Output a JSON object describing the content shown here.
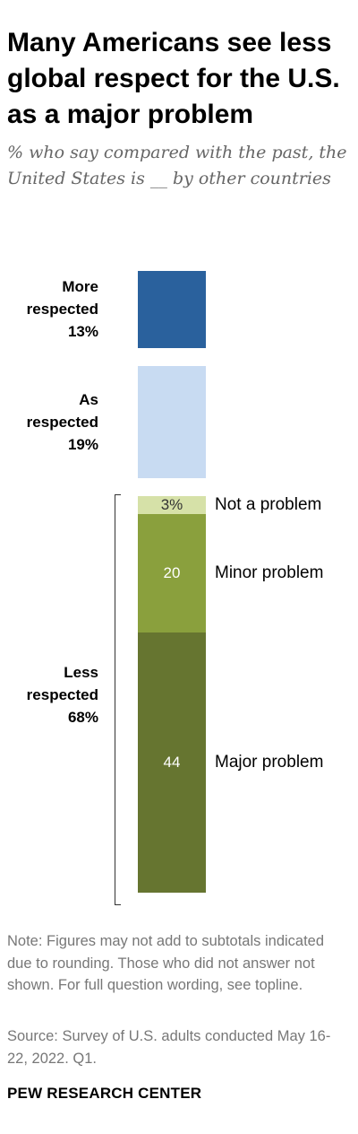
{
  "header": {
    "title": "Many Americans see less global respect for the U.S. as a major problem",
    "subtitle": "% who say compared with the past, the United States is __ by other countries"
  },
  "chart_data": {
    "type": "bar",
    "categories": [
      "More respected",
      "As respected",
      "Less respected"
    ],
    "values": [
      13,
      19,
      68
    ],
    "value_labels": [
      "13%",
      "19%",
      "68%"
    ],
    "colors": [
      "#2a619d",
      "#c8dbf2",
      null
    ],
    "breakdown": {
      "category": "Less respected",
      "segments": [
        {
          "name": "Not a problem",
          "value": 3,
          "value_label": "3%",
          "color": "#d6e1a8",
          "text_color": "#333333"
        },
        {
          "name": "Minor problem",
          "value": 20,
          "value_label": "20",
          "color": "#8aa03d",
          "text_color": "#ffffff"
        },
        {
          "name": "Major problem",
          "value": 44,
          "value_label": "44",
          "color": "#667530",
          "text_color": "#ffffff"
        }
      ]
    }
  },
  "footer": {
    "note": "Note: Figures may not add to subtotals indicated due to rounding. Those who did not answer not shown. For full question wording, see topline.",
    "source": "Source: Survey of U.S. adults conducted May 16-22, 2022. Q1.",
    "brand": "PEW RESEARCH CENTER"
  }
}
